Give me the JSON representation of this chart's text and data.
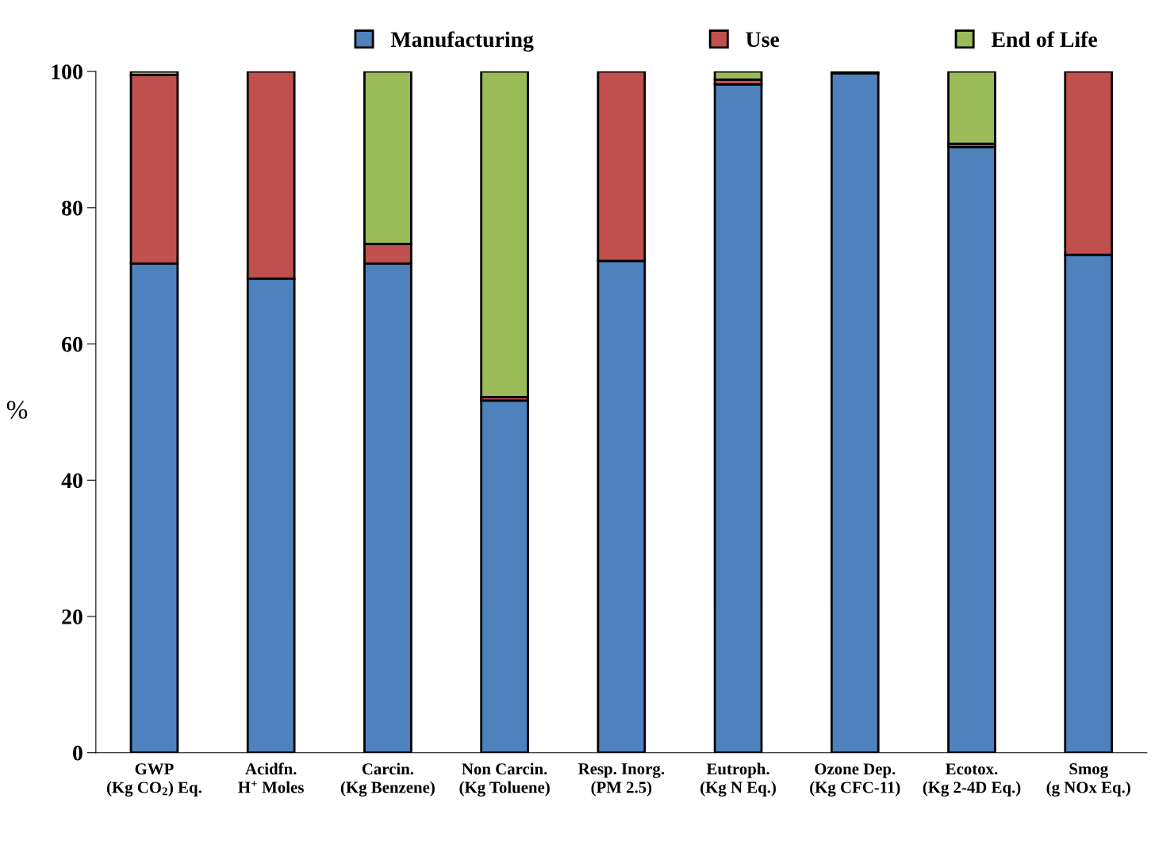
{
  "chart_data": {
    "type": "bar",
    "stacked": true,
    "ylabel": "%",
    "categories": [
      "GWP\n(Kg CO$_{2}$) Eq.",
      "Acidfn.\nH$^{+}$ Moles",
      "Carcin.\n(Kg Benzene)",
      "Non Carcin.\n(Kg Toluene)",
      "Resp. Inorg.\n(PM 2.5)",
      "Eutroph.\n(Kg N Eq.)",
      "Ozone Dep.\n(Kg CFC-11)",
      "Ecotox.\n(Kg 2-4D Eq.)",
      "Smog\n(g NOx Eq.)"
    ],
    "series": [
      {
        "name": "Manufacturing",
        "color": "#4f81bd",
        "values": [
          71.8,
          69.6,
          71.8,
          51.7,
          72.2,
          98.1,
          99.7,
          88.9,
          73.1
        ]
      },
      {
        "name": "Use",
        "color": "#c0504d",
        "values": [
          27.7,
          30.4,
          2.9,
          0.5,
          27.8,
          0.7,
          0.3,
          0.5,
          26.9
        ]
      },
      {
        "name": "End of Life",
        "color": "#9bbb59",
        "values": [
          0.5,
          null,
          25.3,
          47.8,
          null,
          1.2,
          null,
          10.6,
          null
        ]
      }
    ],
    "ylim": [
      0,
      100
    ],
    "yticks": [
      0,
      20,
      40,
      60,
      80,
      100
    ],
    "grid": false,
    "legend": "top"
  }
}
